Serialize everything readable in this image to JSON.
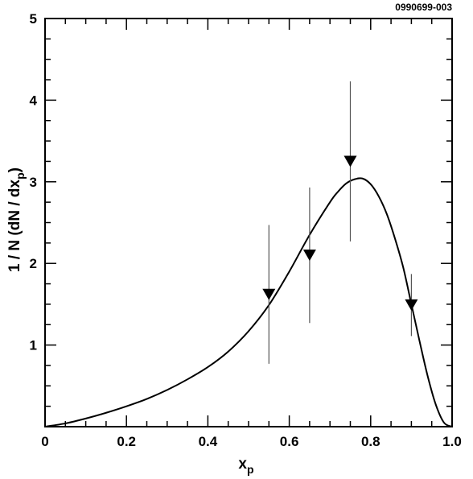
{
  "figure_id": "0990699-003",
  "chart_data": {
    "type": "scatter",
    "xlabel": "x",
    "xlabel_sub": "p",
    "ylabel": "1 / N (dN / dx",
    "ylabel_sub": "p",
    "ylabel_close": ")",
    "xlim": [
      0,
      1.0
    ],
    "ylim": [
      0,
      5
    ],
    "x_ticks": [
      {
        "value": 0,
        "label": "0"
      },
      {
        "value": 0.2,
        "label": "0.2"
      },
      {
        "value": 0.4,
        "label": "0.4"
      },
      {
        "value": 0.6,
        "label": "0.6"
      },
      {
        "value": 0.8,
        "label": "0.8"
      },
      {
        "value": 1.0,
        "label": "1.0"
      }
    ],
    "y_ticks": [
      {
        "value": 1,
        "label": "1"
      },
      {
        "value": 2,
        "label": "2"
      },
      {
        "value": 3,
        "label": "3"
      },
      {
        "value": 4,
        "label": "4"
      },
      {
        "value": 5,
        "label": "5"
      }
    ],
    "grid": false,
    "series": [
      {
        "kind": "points",
        "marker": "filled-down-triangle",
        "x": [
          0.55,
          0.65,
          0.75,
          0.9
        ],
        "y": [
          1.62,
          2.1,
          3.25,
          1.49
        ],
        "y_err": [
          0.85,
          0.83,
          0.98,
          0.38
        ]
      },
      {
        "kind": "curve",
        "x": [
          0,
          0.05,
          0.1,
          0.15,
          0.2,
          0.25,
          0.3,
          0.35,
          0.4,
          0.45,
          0.5,
          0.55,
          0.6,
          0.65,
          0.7,
          0.72,
          0.74,
          0.76,
          0.78,
          0.8,
          0.82,
          0.84,
          0.86,
          0.88,
          0.9,
          0.92,
          0.94,
          0.96,
          0.98,
          1.0
        ],
        "y": [
          0,
          0.04,
          0.1,
          0.17,
          0.25,
          0.34,
          0.45,
          0.58,
          0.73,
          0.92,
          1.17,
          1.49,
          1.9,
          2.35,
          2.75,
          2.88,
          2.98,
          3.03,
          3.04,
          2.97,
          2.82,
          2.6,
          2.3,
          1.95,
          1.5,
          1.05,
          0.62,
          0.27,
          0.05,
          0
        ]
      }
    ]
  }
}
